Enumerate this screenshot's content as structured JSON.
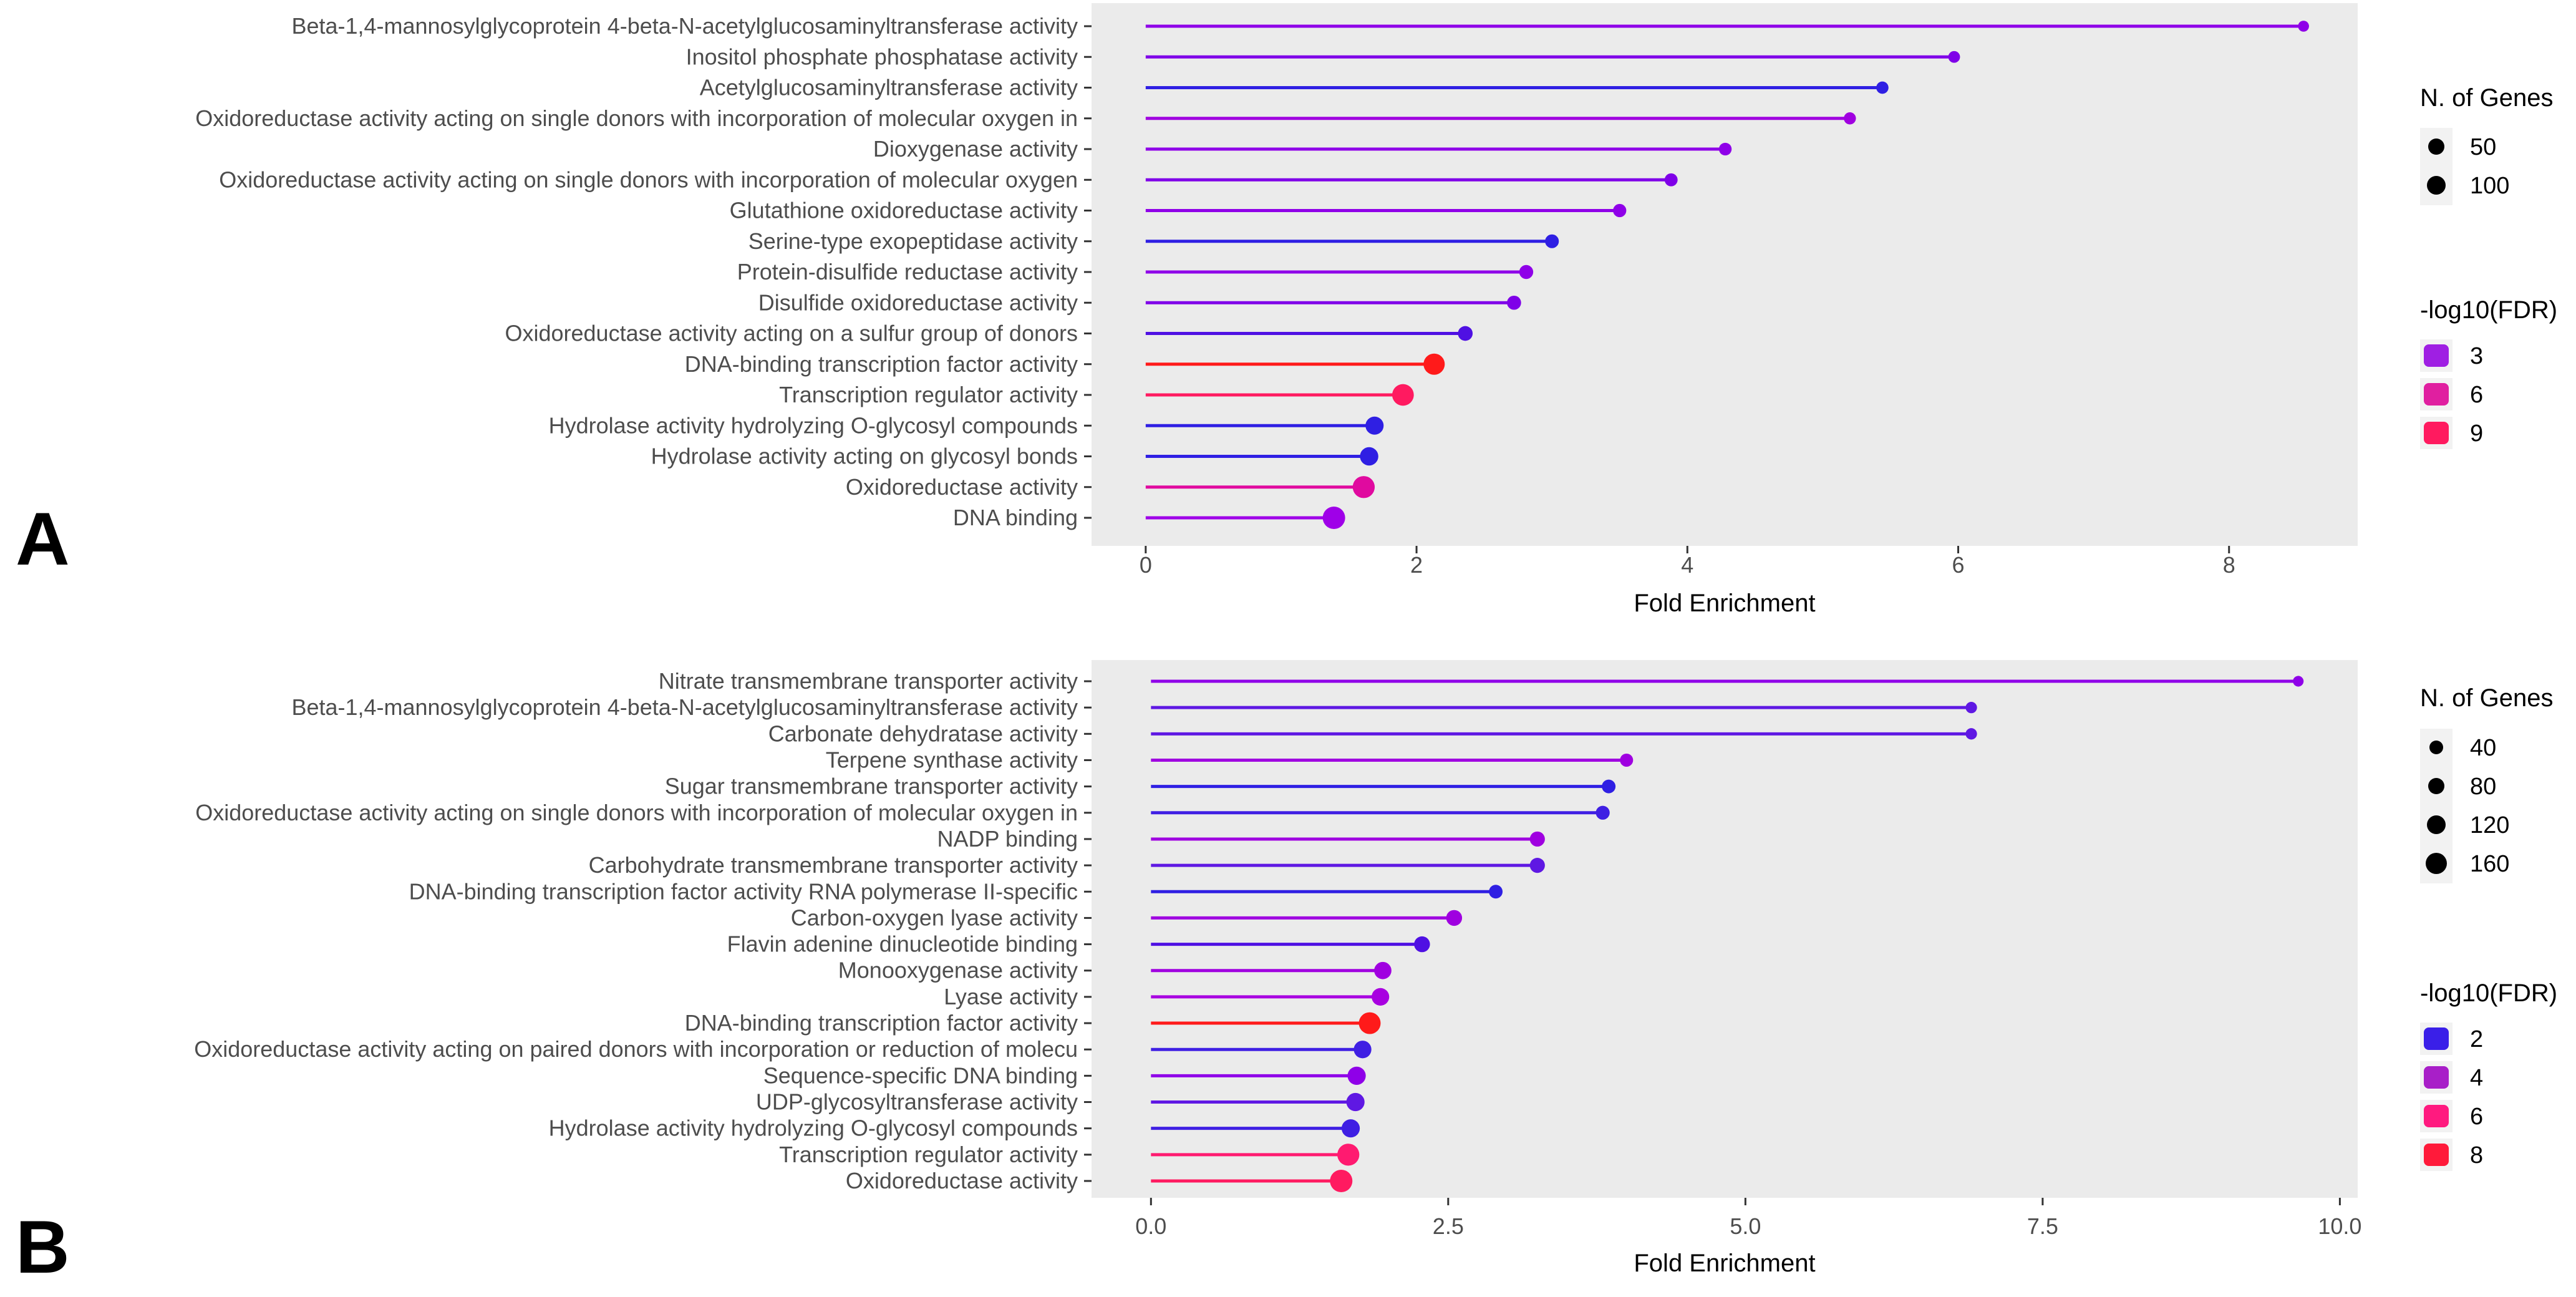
{
  "chart_data": [
    {
      "panel_label": "A",
      "type": "lollipop",
      "xlabel": "Fold Enrichment",
      "xlim": [
        -0.4,
        8.95
      ],
      "xticks": [
        0,
        2,
        4,
        6,
        8
      ],
      "xtick_labels": [
        "0",
        "2",
        "4",
        "6",
        "8"
      ],
      "grid": false,
      "legend_placement": "right",
      "categories": [
        "Beta-1,4-mannosylglycoprotein 4-beta-N-acetylglucosaminyltransferase activity",
        "Inositol phosphate phosphatase activity",
        "Acetylglucosaminyltransferase activity",
        "Oxidoreductase activity acting on single donors with incorporation of molecular oxygen in",
        "Dioxygenase activity",
        "Oxidoreductase activity acting on single donors with incorporation of molecular oxygen",
        "Glutathione oxidoreductase activity",
        "Serine-type exopeptidase activity",
        "Protein-disulfide reductase activity",
        "Disulfide oxidoreductase activity",
        "Oxidoreductase activity acting on a sulfur group of donors",
        "DNA-binding transcription factor activity",
        "Transcription regulator activity",
        "Hydrolase activity hydrolyzing O-glycosyl compounds",
        "Hydrolase activity acting on glycosyl bonds",
        "Oxidoreductase activity",
        "DNA binding"
      ],
      "values": [
        8.55,
        5.97,
        5.44,
        5.2,
        4.28,
        3.88,
        3.5,
        3.0,
        2.81,
        2.72,
        2.36,
        2.13,
        1.9,
        1.69,
        1.65,
        1.61,
        1.39
      ],
      "n_genes": [
        8,
        12,
        15,
        14,
        18,
        20,
        22,
        26,
        28,
        29,
        35,
        125,
        132,
        75,
        78,
        140,
        148
      ],
      "neg_log10_fdr": [
        2.3,
        2.6,
        1.8,
        2.7,
        2.6,
        2.5,
        2.6,
        1.9,
        2.4,
        2.3,
        2.1,
        10.5,
        8.5,
        1.4,
        1.3,
        6.0,
        3.0
      ],
      "colors": [
        "#8f00e8",
        "#7f00e8",
        "#2f1fe3",
        "#a000e0",
        "#8f00e8",
        "#7f00e8",
        "#8f00e8",
        "#2f1fe3",
        "#8f00e8",
        "#7f00e8",
        "#4f10e3",
        "#ff1a1a",
        "#ff1a60",
        "#2f1fe3",
        "#2f1fe3",
        "#e00a9f",
        "#9f00e8"
      ],
      "legend_size": {
        "title": "N. of Genes",
        "labels": [
          "50",
          "100"
        ]
      },
      "legend_color": {
        "title": "-log10(FDR)",
        "labels": [
          "3",
          "6",
          "9"
        ],
        "colors": [
          "#9f1fe3",
          "#e01fa0",
          "#ff1a5f"
        ]
      }
    },
    {
      "panel_label": "B",
      "type": "lollipop",
      "xlabel": "Fold Enrichment",
      "xlim": [
        -0.5,
        10.15
      ],
      "xticks": [
        0,
        2.5,
        5,
        7.5,
        10
      ],
      "xtick_labels": [
        "0.0",
        "2.5",
        "5.0",
        "7.5",
        "10.0"
      ],
      "grid": false,
      "legend_placement": "right",
      "categories": [
        "Nitrate transmembrane transporter activity",
        "Beta-1,4-mannosylglycoprotein 4-beta-N-acetylglucosaminyltransferase activity",
        "Carbonate dehydratase activity",
        "Terpene synthase activity",
        "Sugar transmembrane transporter activity",
        "Oxidoreductase activity acting on single donors with incorporation of molecular oxygen in",
        "NADP binding",
        "Carbohydrate transmembrane transporter activity",
        "DNA-binding transcription factor activity RNA polymerase II-specific",
        "Carbon-oxygen lyase activity",
        "Flavin adenine dinucleotide binding",
        "Monooxygenase activity",
        "Lyase activity",
        "DNA-binding transcription factor activity",
        "Oxidoreductase activity acting on paired donors with incorporation or reduction of molecu",
        "Sequence-specific DNA binding",
        "UDP-glycosyltransferase activity",
        "Hydrolase activity hydrolyzing O-glycosyl compounds",
        "Transcription regulator activity",
        "Oxidoreductase activity"
      ],
      "values": [
        9.65,
        6.9,
        6.9,
        4.0,
        3.85,
        3.8,
        3.25,
        3.25,
        2.9,
        2.55,
        2.28,
        1.95,
        1.93,
        1.84,
        1.78,
        1.73,
        1.72,
        1.68,
        1.66,
        1.6
      ],
      "n_genes": [
        8,
        12,
        12,
        25,
        30,
        32,
        45,
        45,
        30,
        55,
        55,
        75,
        80,
        160,
        80,
        90,
        90,
        90,
        165,
        175
      ],
      "neg_log10_fdr": [
        3.8,
        2.2,
        2.2,
        3.9,
        2.0,
        2.2,
        4.0,
        2.6,
        1.8,
        3.8,
        2.5,
        4.2,
        4.4,
        8.5,
        2.2,
        3.4,
        2.6,
        2.4,
        6.8,
        7.4
      ],
      "colors": [
        "#8f00e8",
        "#5f18e3",
        "#5f18e3",
        "#9f00e0",
        "#2f1fe3",
        "#3f1fe3",
        "#9f00e0",
        "#5f18e3",
        "#2f1fe3",
        "#9f00e0",
        "#4f10e3",
        "#a000e0",
        "#a800e0",
        "#ff1a1a",
        "#3f1fe3",
        "#8f00e8",
        "#5f18e3",
        "#3f1fe3",
        "#ff1a70",
        "#ff1a60"
      ],
      "legend_size": {
        "title": "N. of Genes",
        "labels": [
          "40",
          "80",
          "120",
          "160"
        ]
      },
      "legend_color": {
        "title": "-log10(FDR)",
        "labels": [
          "2",
          "4",
          "6",
          "8"
        ],
        "colors": [
          "#3a1fe8",
          "#a81fc8",
          "#ff1a7f",
          "#ff1a3a"
        ]
      }
    }
  ]
}
